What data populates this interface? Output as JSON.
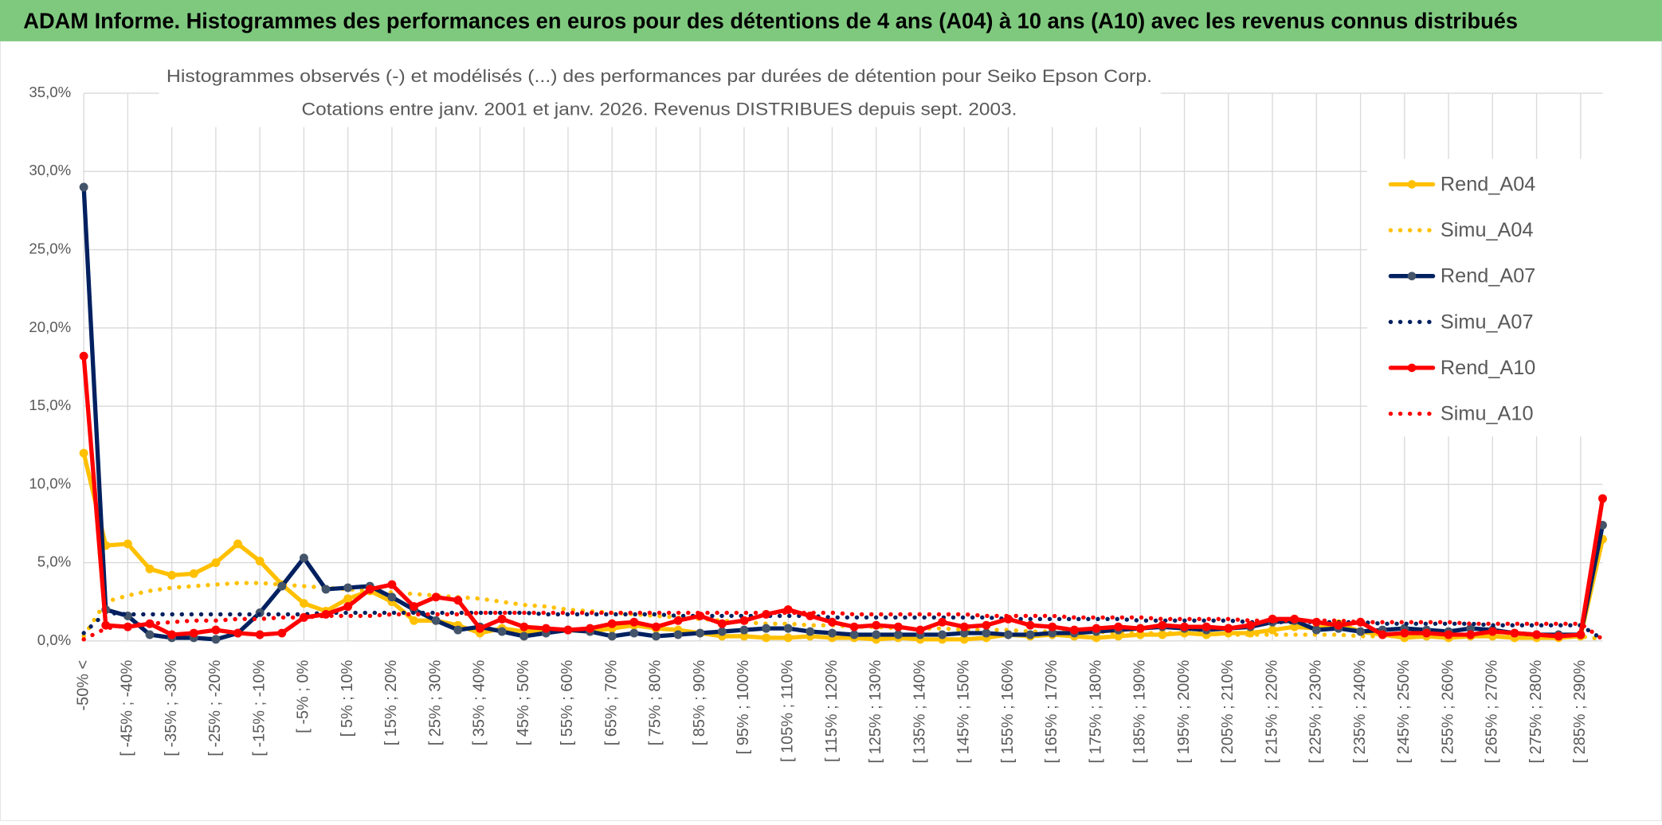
{
  "header": {
    "title": "ADAM Informe. Histogrammes des performances en euros pour des détentions de 4 ans (A04) à 10 ans (A10) avec les revenus connus distribués"
  },
  "chart_data": {
    "type": "line",
    "title": "Histogrammes observés (-) et modélisés (...) des performances par durées de détention pour Seiko Epson Corp.",
    "subtitle": "Cotations entre janv. 2001 et janv. 2026. Revenus DISTRIBUES depuis sept. 2003.",
    "categories": [
      "-50% <",
      null,
      "[ -45% ; -40%",
      null,
      "[ -35% ; -30%",
      null,
      "[ -25% ; -20%",
      null,
      "[ -15% ; -10%",
      null,
      "[ -5% ; 0%",
      null,
      "[ 5% ; 10%",
      null,
      "[ 15% ; 20%",
      null,
      "[ 25% ; 30%",
      null,
      "[ 35% ; 40%",
      null,
      "[ 45% ; 50%",
      null,
      "[ 55% ; 60%",
      null,
      "[ 65% ; 70%",
      null,
      "[ 75% ; 80%",
      null,
      "[ 85% ; 90%",
      null,
      "[ 95% ; 100%",
      null,
      "[ 105% ; 110%",
      null,
      "[ 115% ; 120%",
      null,
      "[ 125% ; 130%",
      null,
      "[ 135% ; 140%",
      null,
      "[ 145% ; 150%",
      null,
      "[ 155% ; 160%",
      null,
      "[ 165% ; 170%",
      null,
      "[ 175% ; 180%",
      null,
      "[ 185% ; 190%",
      null,
      "[ 195% ; 200%",
      null,
      "[ 205% ; 210%",
      null,
      "[ 215% ; 220%",
      null,
      "[ 225% ; 230%",
      null,
      "[ 235% ; 240%",
      null,
      "[ 245% ; 250%",
      null,
      "[ 255% ; 260%",
      null,
      "[ 265% ; 270%",
      null,
      "[ 275% ; 280%",
      null,
      "[ 285% ; 290%",
      null
    ],
    "series": [
      {
        "name": "Rend_A04",
        "color": "#FFC000",
        "style": "solid",
        "marker": true,
        "values": [
          12.0,
          6.1,
          6.2,
          4.6,
          4.2,
          4.3,
          5.0,
          6.2,
          5.1,
          3.6,
          2.4,
          1.9,
          2.7,
          3.2,
          2.5,
          1.3,
          1.3,
          1.0,
          0.5,
          0.8,
          0.6,
          0.6,
          0.7,
          0.6,
          0.8,
          1.0,
          0.8,
          0.7,
          0.5,
          0.3,
          0.3,
          0.2,
          0.2,
          0.3,
          0.2,
          0.2,
          0.1,
          0.2,
          0.1,
          0.1,
          0.1,
          0.2,
          0.4,
          0.3,
          0.4,
          0.3,
          0.2,
          0.3,
          0.4,
          0.4,
          0.5,
          0.4,
          0.5,
          0.5,
          0.7,
          0.9,
          0.8,
          1.1,
          0.6,
          0.4,
          0.2,
          0.3,
          0.2,
          0.3,
          0.3,
          0.2,
          0.2,
          0.2,
          0.3,
          6.5
        ]
      },
      {
        "name": "Simu_A04",
        "color": "#FFC000",
        "style": "dotted",
        "marker": false,
        "values": [
          0.3,
          2.5,
          2.9,
          3.2,
          3.4,
          3.5,
          3.6,
          3.7,
          3.7,
          3.6,
          3.5,
          3.4,
          3.3,
          3.2,
          3.1,
          3.0,
          2.9,
          2.8,
          2.7,
          2.5,
          2.3,
          2.2,
          2.0,
          1.9,
          1.8,
          1.7,
          1.6,
          1.5,
          1.4,
          1.3,
          1.2,
          1.1,
          1.1,
          1.0,
          1.0,
          0.9,
          0.9,
          0.8,
          0.8,
          0.8,
          0.7,
          0.7,
          0.7,
          0.6,
          0.6,
          0.6,
          0.6,
          0.5,
          0.5,
          0.5,
          0.5,
          0.5,
          0.4,
          0.4,
          0.4,
          0.4,
          0.4,
          0.4,
          0.3,
          0.3,
          0.3,
          0.3,
          0.3,
          0.3,
          0.3,
          0.3,
          0.3,
          0.3,
          0.3,
          0.1
        ]
      },
      {
        "name": "Rend_A07",
        "color": "#002060",
        "marker_color": "#44546A",
        "style": "solid",
        "marker": true,
        "values": [
          29.0,
          2.0,
          1.6,
          0.4,
          0.2,
          0.2,
          0.1,
          0.5,
          1.8,
          3.5,
          5.3,
          3.3,
          3.4,
          3.5,
          2.8,
          2.0,
          1.3,
          0.7,
          0.9,
          0.6,
          0.3,
          0.5,
          0.7,
          0.6,
          0.3,
          0.5,
          0.3,
          0.4,
          0.5,
          0.6,
          0.7,
          0.8,
          0.8,
          0.6,
          0.5,
          0.4,
          0.4,
          0.4,
          0.4,
          0.4,
          0.5,
          0.5,
          0.4,
          0.4,
          0.5,
          0.5,
          0.6,
          0.7,
          0.8,
          0.9,
          0.8,
          0.7,
          0.8,
          0.9,
          1.2,
          1.3,
          0.7,
          0.8,
          0.6,
          0.7,
          0.8,
          0.7,
          0.6,
          0.8,
          0.7,
          0.5,
          0.4,
          0.4,
          0.4,
          7.4
        ]
      },
      {
        "name": "Simu_A07",
        "color": "#002060",
        "style": "dotted",
        "marker": false,
        "values": [
          0.5,
          1.8,
          1.7,
          1.7,
          1.7,
          1.7,
          1.7,
          1.7,
          1.7,
          1.7,
          1.7,
          1.8,
          1.8,
          1.8,
          1.8,
          1.8,
          1.8,
          1.8,
          1.8,
          1.8,
          1.8,
          1.7,
          1.7,
          1.7,
          1.7,
          1.7,
          1.7,
          1.6,
          1.6,
          1.6,
          1.6,
          1.6,
          1.6,
          1.6,
          1.5,
          1.5,
          1.5,
          1.5,
          1.5,
          1.5,
          1.5,
          1.5,
          1.4,
          1.4,
          1.4,
          1.4,
          1.4,
          1.4,
          1.3,
          1.3,
          1.3,
          1.3,
          1.3,
          1.2,
          1.2,
          1.2,
          1.2,
          1.2,
          1.2,
          1.1,
          1.1,
          1.1,
          1.1,
          1.1,
          1.0,
          1.0,
          1.0,
          1.0,
          1.0,
          0.1
        ]
      },
      {
        "name": "Rend_A10",
        "color": "#FF0000",
        "style": "solid",
        "marker": true,
        "values": [
          18.2,
          1.0,
          0.9,
          1.1,
          0.4,
          0.5,
          0.7,
          0.5,
          0.4,
          0.5,
          1.5,
          1.7,
          2.2,
          3.3,
          3.6,
          2.2,
          2.8,
          2.6,
          0.8,
          1.4,
          0.9,
          0.8,
          0.7,
          0.8,
          1.1,
          1.2,
          0.9,
          1.3,
          1.6,
          1.1,
          1.3,
          1.7,
          2.0,
          1.6,
          1.2,
          0.9,
          1.0,
          0.9,
          0.7,
          1.2,
          0.9,
          1.0,
          1.4,
          1.0,
          0.9,
          0.7,
          0.8,
          0.9,
          0.8,
          1.0,
          0.9,
          0.9,
          0.8,
          1.0,
          1.4,
          1.4,
          1.2,
          1.0,
          1.2,
          0.4,
          0.5,
          0.5,
          0.4,
          0.4,
          0.6,
          0.5,
          0.4,
          0.3,
          0.4,
          9.1
        ]
      },
      {
        "name": "Simu_A10",
        "color": "#FF0000",
        "style": "dotted",
        "marker": false,
        "values": [
          0.1,
          0.8,
          1.0,
          1.1,
          1.2,
          1.3,
          1.3,
          1.4,
          1.4,
          1.5,
          1.5,
          1.6,
          1.6,
          1.6,
          1.7,
          1.7,
          1.7,
          1.7,
          1.8,
          1.8,
          1.8,
          1.8,
          1.8,
          1.8,
          1.8,
          1.8,
          1.8,
          1.8,
          1.8,
          1.8,
          1.8,
          1.8,
          1.8,
          1.8,
          1.8,
          1.7,
          1.7,
          1.7,
          1.7,
          1.7,
          1.7,
          1.6,
          1.6,
          1.6,
          1.6,
          1.5,
          1.5,
          1.5,
          1.5,
          1.4,
          1.4,
          1.4,
          1.4,
          1.3,
          1.3,
          1.3,
          1.3,
          1.3,
          1.2,
          1.2,
          1.2,
          1.2,
          1.2,
          1.1,
          1.1,
          1.1,
          1.1,
          1.1,
          1.1,
          0.1
        ]
      }
    ],
    "ylim": [
      0,
      35
    ],
    "yticks": [
      {
        "value": 0,
        "label": "0,0%"
      },
      {
        "value": 5,
        "label": "5,0%"
      },
      {
        "value": 10,
        "label": "10,0%"
      },
      {
        "value": 15,
        "label": "15,0%"
      },
      {
        "value": 20,
        "label": "20,0%"
      },
      {
        "value": 25,
        "label": "25,0%"
      },
      {
        "value": 30,
        "label": "30,0%"
      },
      {
        "value": 35,
        "label": "35,0%"
      }
    ],
    "grid": true,
    "legend": "right"
  }
}
